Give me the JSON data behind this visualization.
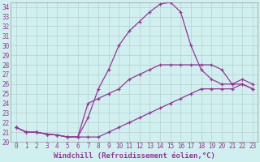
{
  "title": "",
  "xlabel": "Windchill (Refroidissement éolien,°C)",
  "bg_color": "#cff0ee",
  "grid_color": "#b0c8c8",
  "line_color": "#993399",
  "hours": [
    0,
    1,
    2,
    3,
    4,
    5,
    6,
    7,
    8,
    9,
    10,
    11,
    12,
    13,
    14,
    15,
    16,
    17,
    18,
    19,
    20,
    21,
    22,
    23
  ],
  "temp": [
    21.5,
    21.0,
    21.0,
    20.8,
    20.7,
    20.5,
    20.5,
    22.5,
    25.5,
    27.5,
    30.0,
    31.5,
    32.5,
    33.5,
    34.3,
    34.5,
    33.5,
    30.0,
    27.5,
    26.5,
    26.0,
    26.0,
    26.5,
    26.0
  ],
  "wc_min": [
    21.5,
    21.0,
    21.0,
    20.8,
    20.7,
    20.5,
    20.5,
    20.5,
    20.5,
    21.0,
    21.5,
    22.0,
    22.5,
    23.0,
    23.5,
    24.0,
    24.5,
    25.0,
    25.5,
    25.5,
    25.5,
    25.5,
    26.0,
    25.5
  ],
  "wc_max": [
    21.5,
    21.0,
    21.0,
    20.8,
    20.7,
    20.5,
    20.5,
    24.0,
    24.5,
    25.0,
    25.5,
    26.5,
    27.0,
    27.5,
    28.0,
    28.0,
    28.0,
    28.0,
    28.0,
    28.0,
    27.5,
    26.0,
    26.0,
    25.5
  ],
  "xlim": [
    -0.5,
    23.5
  ],
  "ylim": [
    20.0,
    34.5
  ],
  "yticks": [
    20,
    21,
    22,
    23,
    24,
    25,
    26,
    27,
    28,
    29,
    30,
    31,
    32,
    33,
    34
  ],
  "xticks": [
    0,
    1,
    2,
    3,
    4,
    5,
    6,
    7,
    8,
    9,
    10,
    11,
    12,
    13,
    14,
    15,
    16,
    17,
    18,
    19,
    20,
    21,
    22,
    23
  ],
  "tick_color": "#993399",
  "tick_fontsize": 5.5,
  "xlabel_fontsize": 6.5,
  "xlabel_color": "#993399",
  "linewidth": 0.9,
  "markersize": 3.0,
  "markeredgewidth": 0.9
}
